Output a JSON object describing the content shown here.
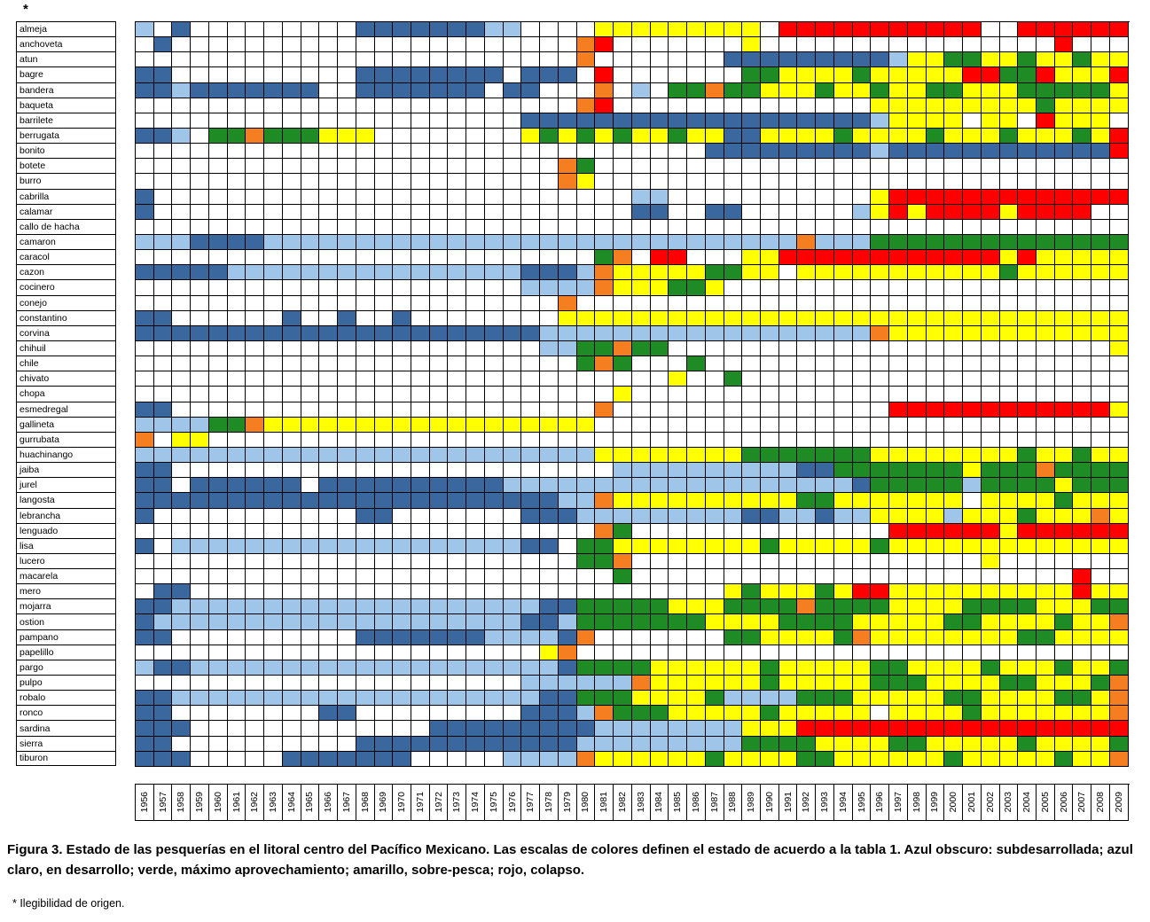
{
  "header": {
    "asterisk": "*"
  },
  "caption": "Figura 3. Estado de las pesquerías en el litoral centro del Pacífico Mexicano. Las escalas de colores definen el estado de acuerdo a la tabla 1. Azul obscuro: subdesarrollada; azul claro, en desarrollo; verde, máximo aprovechamiento; amarillo, sobre-pesca; rojo, colapso.",
  "footnote": "* Ilegibilidad de origen.",
  "chart_data": {
    "type": "heatmap",
    "title": "Estado de las pesquerías en el litoral centro del Pacífico Mexicano",
    "x": [
      "1956",
      "1957",
      "1958",
      "1959",
      "1960",
      "1961",
      "1962",
      "1963",
      "1964",
      "1965",
      "1966",
      "1967",
      "1968",
      "1969",
      "1970",
      "1971",
      "1972",
      "1973",
      "1974",
      "1975",
      "1976",
      "1977",
      "1978",
      "1979",
      "1980",
      "1981",
      "1982",
      "1983",
      "1984",
      "1985",
      "1986",
      "1987",
      "1988",
      "1989",
      "1990",
      "1991",
      "1992",
      "1993",
      "1994",
      "1995",
      "1996",
      "1997",
      "1998",
      "1999",
      "2000",
      "2001",
      "2002",
      "2003",
      "2004",
      "2005",
      "2006",
      "2007",
      "2008",
      "2009"
    ],
    "categories": [
      "almeja",
      "anchoveta",
      "atun",
      "bagre",
      "bandera",
      "baqueta",
      "barrilete",
      "berrugata",
      "bonito",
      "botete",
      "burro",
      "cabrilla",
      "calamar",
      "callo de hacha",
      "camaron",
      "caracol",
      "cazon",
      "cocinero",
      "conejo",
      "constantino",
      "corvina",
      "chihuil",
      "chile",
      "chivato",
      "chopa",
      "esmedregal",
      "gallineta",
      "gurrubata",
      "huachinango",
      "jaiba",
      "jurel",
      "langosta",
      "lebrancha",
      "lenguado",
      "lisa",
      "lucero",
      "macarela",
      "mero",
      "mojarra",
      "ostion",
      "pampano",
      "papelillo",
      "pargo",
      "pulpo",
      "robalo",
      "ronco",
      "sardina",
      "sierra",
      "tiburon"
    ],
    "palette": {
      "D": {
        "hex": "#3A689E",
        "label": "azul obscuro: subdesarrollada"
      },
      "L": {
        "hex": "#9FC5E8",
        "label": "azul claro: en desarrollo"
      },
      "G": {
        "hex": "#1F8B24",
        "label": "verde: máximo aprovechamiento"
      },
      "Y": {
        "hex": "#FFFF00",
        "label": "amarillo: sobre-pesca"
      },
      "R": {
        "hex": "#FF0000",
        "label": "rojo: colapso"
      },
      "O": {
        "hex": "#F57E20",
        "label": ""
      },
      "W": {
        "hex": "#FFFFFF",
        "label": ""
      }
    },
    "layout": {
      "grid": true,
      "x_labels_rotated": true,
      "legend_position": "caption"
    },
    "matrix": [
      "LWDWWWWWWWWWDDDDDDDLLWWWWYYYYYYYYYWRRRRRRRRRRRWWRRRRRR",
      "WDWWWWWWWWWWWWWWWWWWWWWWORWWWWWWWYWWWWWWWWWWWWWWWWRWWW",
      "WWWWWWWWWWWWWWWWWWWWWWWWOWWWWWWWDDDDDDDDDLYYGGYYGYYGYY",
      "DDWWWWWWWWWWDDDDDDDDWDDDWRWWWWWWWGGYYYYGYYYYYRRGGRYYYR",
      "DDLDDDDDDDWWDDDDDDDWDDWWWOWLWGGOGGYYYGYYGYYGGYYYGGGGGY",
      "WWWWWWWWWWWWWWWWWWWWWWWWORWWWWWWWWWWWWWWYYYYYYYYYGYYYY",
      "WWWWWWWWWWWWWWWWWWWWWDDDDDDDDDDDDDDDDDDDLYYYYWYYWRYYYW",
      "DDLWGGOGGGYYYWWWWWWWWYGYGYGYYGYYDDYYYYGYYYYGYYYGYYYGYR",
      "WWWWWWWWWWWWWWWWWWWWWWWWWWWWWWWDDDDDDDDDLDDDDDDDDDDDDR",
      "WWWWWWWWWWWWWWWWWWWWWWWOGWWWWWWWWWWWWWWWWWWWWWWWWWWWWW",
      "WWWWWWWWWWWWWWWWWWWWWWWOYWWWWWWWWWWWWWWWWWWWWWWWWWWWWW",
      "DWWWWWWWWWWWWWWWWWWWWWWWWWWLLWWWWWWWWWWWYRRRRRRRRRRRRR",
      "DWWWWWWWWWWWWWWWWWWWWWWWWWWDDWWDDWWWWWWLYRYRRRRYRRRRWW",
      "WWWWWWWWWWWWWWWWWWWWWWWWWWWWWWWWWWWWWWWWWWWWWWWWWWWWWW",
      "LLLDDDDLLLLLLLLLLLLLLLLLLLLLLLLLLLLLOLLLGGGGGGGGGGGGGG",
      "WWWWWWWWWWWWWWWWWWWWWWWWWGOWRRWWWYYRRRRRRRRRRRRYRYYYYY",
      "DDDDDLLLLLLLLLLLLLLLLDDDLOYYYYYGGYYWYYYYYYYYYYYGYYYYYY",
      "WWWWWWWWWWWWWWWWWWWWWLLLLOYYYGGYWWWWWWWWWWWWWWWWWWWWWW",
      "WWWWWWWWWWWWWWWWWWWWWWWOWWWWWWWWWWWWWWWWWWWWWWWWWWWWWW",
      "DDWWWWWWDWWDWWDWWWWWWWWYYYYYYYYYYYYYYYYYYYYYYYYYYYYYYY",
      "DDDDDDDDDDDDDDDDDDDDDDLLLLLLLLLLLLLLLLLLOYYYYYYYYYYYYY",
      "WWWWWWWWWWWWWWWWWWWWWWLLGGOGGWWWWWWWWWWWWWWWWWWWWWWWWY",
      "WWWWWWWWWWWWWWWWWWWWWWWWGOGWWWGWWWWWWWWWWWWWWWWWWWWWWW",
      "WWWWWWWWWWWWWWWWWWWWWWWWWWWWWYWWGWWWWWWWWWWWWWWWWWWWWW",
      "WWWWWWWWWWWWWWWWWWWWWWWWWWYWWWWWWWWWWWWWWWWWWWWWWWWWWW",
      "DDWWWWWWWWWWWWWWWWWWWWWWWOWWWWWWWWWWWWWWWRRRRRRRRRRRRY",
      "LLLLGGOYYYYYYYYYYYYYYYYYYWWWWWWWWWWWWWWWWWWWWWWWWWWWWW",
      "OWYYWWWWWWWWWWWWWWWWWWWWWWWWWWWWWWWWWWWWWWWWWWWWWWWWWW",
      "LLLLLLLLLLLLLLLLLLLLLLLLLYYYYYYYYGGGGGGGYYYYYYYYGYYGYY",
      "DDWWWWWWWWWWWWWWWWWWWWWWWWLLLLLLLLLLDDGGGGGGGYGGGOGGGG",
      "DDWDDDDDDWDDDDDDDDDDLLLLLLLLLLLLLLLLLLLDGGGGGLGGGGYGGG",
      "DDDDDDDDDDDDDDDDDDDDDDDLLOYYYYYYYYYYGGYYYYYYYWYYYYGYYY",
      "DWWWWWWWWWWWDDWWWWWWWDDDLLLLLLLLLDDLLDLLYYYYLYYYGYYYOY",
      "WWWWWWWWWWWWWWWWWWWWWWWWWOGWWWWWWWWWWWWWWRRRRRRYRRRRRR",
      "DWLLLLLLLLLLLLLLLLLLLDDWGGYYYYYYYYGYYYYYGYYYYYYYYYYYYY",
      "WWWWWWWWWWWWWWWWWWWWWWWWGGOWWWWWWWWWWWWWWWWWWWYWWWWWWW",
      "WWWWWWWWWWWWWWWWWWWWWWWWWWGWWWWWWWWWWWWWWWWWWWWWWWWRWW",
      "WDDWWWWWWWWWWWWWWWWWWWWWWWWWWWWWYGYYYGYRRYYYYYYYYYYRYY",
      "DDLLLLLLLLLLLLLLLLLLLLDDGGGGGYYYGGGGOGGGGYYYYGGGGYYYGG",
      "DLLLLLLLLLLLLLLLLLLLLDDLGGGGGGGYYYYGGGGYYYYYGGYYYYGYYO",
      "DDWWWWWWWWWWDDDDDDDLLLLDOWWWWWWWGGYYYYGOYYYYYYYYGGYYYY",
      "WWWWWWWWWWWWWWWWWWWWWWYOWWWWWWWWWWWWWWWWWWWWWWWWWWWWWW",
      "LDDLLLLLLLLLLLLLLLLLLLLDGGGGYYYYYYGYYYYYGGYYYYGYYYGYYG",
      "WWWWWWWWWWWWWWWWWWWWWLLLLLLOYYYYYYGYYYYYGGGYYYYGGYYYGO",
      "DDLLLLLLLLLLLLLLLLLLLLDDGGGYYYYGLLLLGGGYYYYYGGYYYYGGYO",
      "DDWWWWWWWWDDWWWWWWWWWDDDLOGGGYYYYYGYYYYYWYYYYGYYYYYYYO",
      "DDDWWWWWWWWWWWWWDDDDDDDDDLLLLLLLLYYYRRRRRRRRRRRRRRRRRR",
      "DDWWWWWWWWWWDDDDDDDDDDDDLLLLLLLLLGGGGYYYYGGYYYYYGYYYYG",
      "DDDWWWWWDDDDDDDWWWWWLLLLOYYYYYYGYYYYGGYYYYYYGYYYYYGYYO"
    ]
  }
}
